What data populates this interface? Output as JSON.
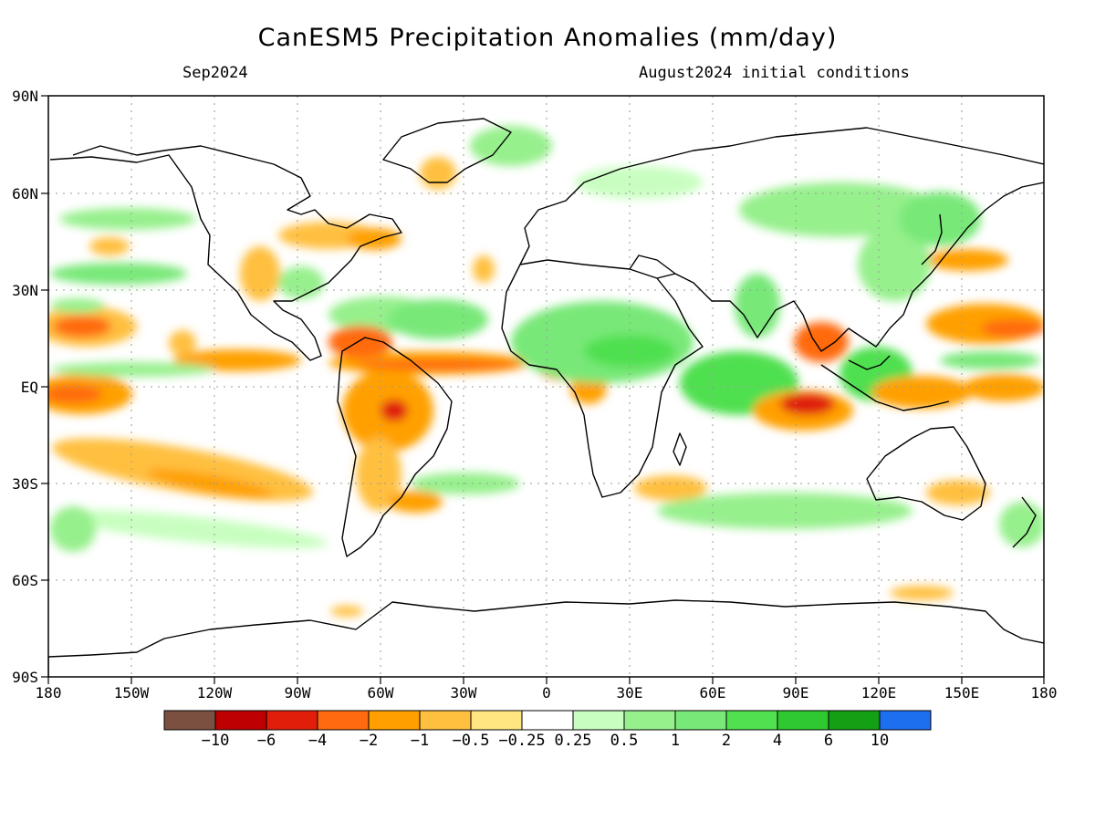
{
  "title": "CanESM5 Precipitation Anomalies (mm/day)",
  "subtitle_left": "Sep2024",
  "subtitle_right": "August2024 initial conditions",
  "lat_labels": [
    "90N",
    "60N",
    "30N",
    "EQ",
    "30S",
    "60S",
    "90S"
  ],
  "lon_labels": [
    "180",
    "150W",
    "120W",
    "90W",
    "60W",
    "30W",
    "0",
    "30E",
    "60E",
    "90E",
    "120E",
    "150E",
    "180"
  ],
  "colorbar": {
    "labels": [
      "−10",
      "−6",
      "−4",
      "−2",
      "−1",
      "−0.5",
      "−0.25",
      "0.25",
      "0.5",
      "1",
      "2",
      "4",
      "6",
      "10"
    ],
    "colors": [
      "#7b5040",
      "#bf0000",
      "#e01e0a",
      "#ff6a10",
      "#ffa000",
      "#ffc040",
      "#ffe680",
      "#ffffff",
      "#c8ffc0",
      "#96f08c",
      "#78e878",
      "#50e050",
      "#30c830",
      "#14a014",
      "#1e6ef0"
    ]
  },
  "colors": {
    "ocean": "#ffffff",
    "coastline": "#000000",
    "grid": "#9a9a9a"
  }
}
